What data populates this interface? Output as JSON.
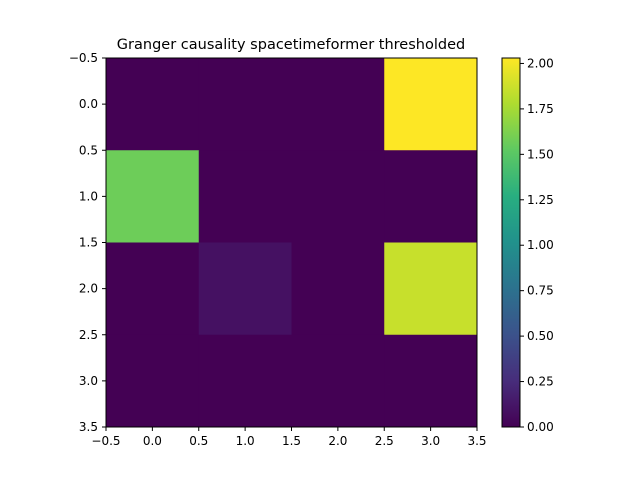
{
  "chart_data": {
    "type": "heatmap",
    "title": "Granger causality spacetimeformer thresholded",
    "xlabel": "",
    "ylabel": "",
    "x_ticks": [
      "−0.5",
      "0.0",
      "0.5",
      "1.0",
      "1.5",
      "2.0",
      "2.5",
      "3.0",
      "3.5"
    ],
    "y_ticks": [
      "−0.5",
      "0.0",
      "0.5",
      "1.0",
      "1.5",
      "2.0",
      "2.5",
      "3.0",
      "3.5"
    ],
    "xlim": [
      -0.5,
      3.5
    ],
    "ylim": [
      3.5,
      -0.5
    ],
    "grid": false,
    "colormap": "viridis",
    "vmin": 0,
    "vmax": 2.03,
    "colorbar_ticks": [
      "0.00",
      "0.25",
      "0.50",
      "0.75",
      "1.00",
      "1.25",
      "1.50",
      "1.75",
      "2.00"
    ],
    "values": [
      [
        0,
        0,
        0,
        2.03
      ],
      [
        1.57,
        0,
        0,
        0
      ],
      [
        0,
        0.09,
        0,
        1.86
      ],
      [
        0,
        0,
        0,
        0
      ]
    ]
  }
}
